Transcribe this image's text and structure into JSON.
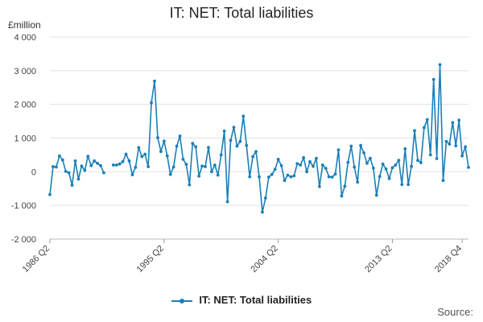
{
  "chart_data": {
    "type": "line",
    "title": "IT: NET: Total liabilities",
    "ylabel": "£million",
    "xlabel": "",
    "ylim": [
      -2000,
      4000
    ],
    "yticks": [
      -2000,
      -1000,
      0,
      1000,
      2000,
      3000,
      4000
    ],
    "ytick_labels": [
      "-2 000",
      "-1 000",
      "0",
      "1 000",
      "2 000",
      "3 000",
      "4 000"
    ],
    "xtick_labels": [
      "1986 Q2",
      "1995 Q2",
      "2004 Q2",
      "2013 Q2",
      "2018 Q4"
    ],
    "xtick_index": [
      0,
      36,
      72,
      108,
      130
    ],
    "grid": true,
    "legend_position": "bottom",
    "source_label": "Source:",
    "color": "#1a7fb8",
    "series": [
      {
        "name": "IT: NET: Total liabilities",
        "values": [
          -680,
          150,
          140,
          470,
          350,
          10,
          -30,
          -400,
          320,
          -220,
          170,
          40,
          460,
          180,
          320,
          250,
          180,
          -30,
          null,
          null,
          200,
          200,
          230,
          300,
          520,
          320,
          -90,
          130,
          720,
          450,
          520,
          150,
          2050,
          2690,
          1010,
          600,
          910,
          470,
          -80,
          140,
          760,
          1060,
          370,
          220,
          -390,
          840,
          740,
          -130,
          170,
          150,
          720,
          0,
          200,
          -100,
          500,
          1210,
          -890,
          930,
          1320,
          760,
          900,
          1650,
          780,
          -150,
          450,
          600,
          -150,
          -1200,
          -780,
          -160,
          -80,
          70,
          370,
          180,
          -260,
          -100,
          -150,
          -120,
          240,
          200,
          420,
          0,
          300,
          160,
          400,
          -440,
          200,
          100,
          -150,
          -160,
          -70,
          650,
          -720,
          -430,
          280,
          760,
          140,
          -310,
          780,
          560,
          250,
          400,
          110,
          -700,
          -140,
          230,
          80,
          -200,
          120,
          200,
          340,
          -380,
          680,
          -380,
          160,
          1220,
          340,
          270,
          1310,
          1550,
          500,
          2740,
          390,
          3180,
          -260,
          900,
          820,
          1460,
          770,
          1530,
          470,
          740,
          130
        ]
      }
    ]
  }
}
